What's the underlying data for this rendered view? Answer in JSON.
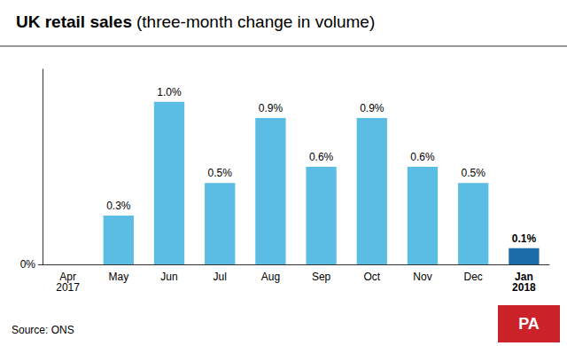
{
  "chart_data": {
    "type": "bar",
    "title": "UK retail sales",
    "subtitle": "(three-month change in volume)",
    "categories": [
      "Apr\n2017",
      "May",
      "Jun",
      "Jul",
      "Aug",
      "Sep",
      "Oct",
      "Nov",
      "Dec",
      "Jan\n2018"
    ],
    "values": [
      0.0,
      0.3,
      1.0,
      0.5,
      0.9,
      0.6,
      0.9,
      0.6,
      0.5,
      0.1
    ],
    "value_labels": [
      null,
      "0.3%",
      "1.0%",
      "0.5%",
      "0.9%",
      "0.6%",
      "0.9%",
      "0.6%",
      "0.5%",
      "0.1%"
    ],
    "data_labels": true,
    "colors": [
      "#5bbde4",
      "#5bbde4",
      "#5bbde4",
      "#5bbde4",
      "#5bbde4",
      "#5bbde4",
      "#5bbde4",
      "#5bbde4",
      "#5bbde4",
      "#1b6ca8"
    ],
    "ylim": [
      0,
      1.2
    ],
    "yticks": [
      {
        "value": 0,
        "label": "0%"
      }
    ],
    "grid": false,
    "annotations": [
      {
        "text": "Source: ONS"
      },
      {
        "text": "PA",
        "color": "#cc2229"
      }
    ]
  }
}
